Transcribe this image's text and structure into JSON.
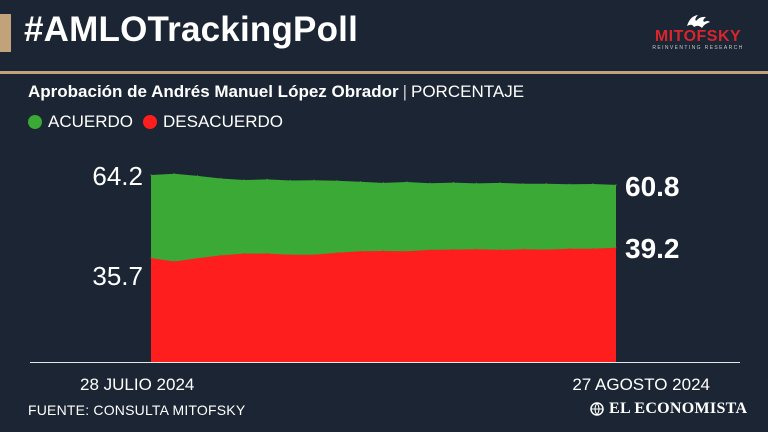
{
  "header": {
    "hashtag": "#AMLOTrackingPoll",
    "brand_name": "MITOFSKY",
    "brand_tagline": "REINVENTING RESEARCH"
  },
  "subtitle": {
    "main": "Aprobación de Andrés Manuel López Obrador",
    "separator": "|",
    "unit": "PORCENTAJE"
  },
  "legend": [
    {
      "label": "ACUERDO",
      "color": "#3aa935"
    },
    {
      "label": "DESACUERDO",
      "color": "#ff1e1e"
    }
  ],
  "chart_data": {
    "type": "area",
    "x_start_label": "28 JULIO 2024",
    "x_end_label": "27 AGOSTO 2024",
    "ylim": [
      0,
      100
    ],
    "grid": false,
    "series": [
      {
        "name": "ACUERDO",
        "color": "#3aa935",
        "values": [
          64.2,
          64.6,
          63.9,
          63.0,
          62.5,
          62.7,
          62.3,
          62.4,
          62.2,
          61.9,
          61.5,
          61.8,
          61.4,
          61.6,
          61.3,
          61.5,
          61.2,
          61.2,
          61.0,
          61.1,
          60.8
        ]
      },
      {
        "name": "DESACUERDO",
        "color": "#ff1e1e",
        "values": [
          35.7,
          34.5,
          35.6,
          36.6,
          37.2,
          37.2,
          36.8,
          36.8,
          37.5,
          38.0,
          38.1,
          38.0,
          38.5,
          38.6,
          38.7,
          38.5,
          38.7,
          38.6,
          38.9,
          38.9,
          39.2
        ]
      }
    ],
    "start_labels": [
      "64.2",
      "35.7"
    ],
    "end_labels": [
      "60.8",
      "39.2"
    ]
  },
  "footer": {
    "source": "FUENTE: CONSULTA MITOFSKY",
    "publisher": "EL ECONOMISTA"
  }
}
